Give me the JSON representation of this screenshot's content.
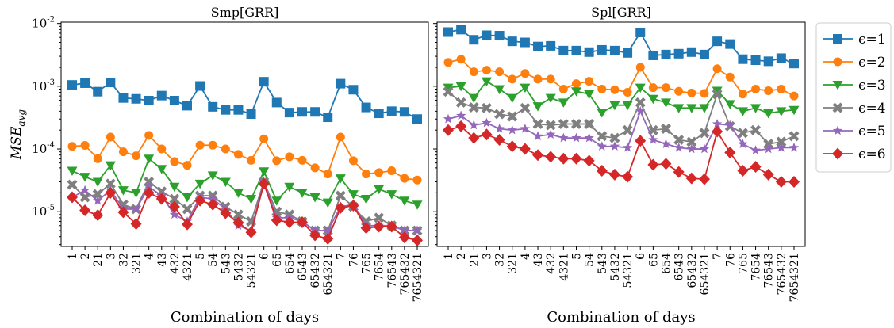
{
  "chart_data": [
    {
      "type": "line",
      "title": "Smp[GRR]",
      "xlabel": "Combination of days",
      "ylabel": "MSE",
      "ylabel_sub": "avg",
      "yscale": "log",
      "ylim": [
        2.8e-06,
        0.0105
      ],
      "yticks": [
        {
          "value": 1e-05,
          "base": "10",
          "exp": "-5"
        },
        {
          "value": 0.0001,
          "base": "10",
          "exp": "-4"
        },
        {
          "value": 0.001,
          "base": "10",
          "exp": "-3"
        },
        {
          "value": 0.01,
          "base": "10",
          "exp": "-2"
        }
      ],
      "categories": [
        "1",
        "2",
        "21",
        "3",
        "32",
        "321",
        "4",
        "43",
        "432",
        "4321",
        "5",
        "54",
        "543",
        "5432",
        "54321",
        "6",
        "65",
        "654",
        "6543",
        "65432",
        "654321",
        "7",
        "76",
        "765",
        "7654",
        "76543",
        "765432",
        "7654321"
      ],
      "series": [
        {
          "name": "ϵ=1",
          "values": [
            0.00105,
            0.00112,
            0.00082,
            0.00115,
            0.00065,
            0.00063,
            0.00059,
            0.00071,
            0.00059,
            0.00049,
            0.00101,
            0.00047,
            0.00042,
            0.00042,
            0.00036,
            0.00118,
            0.00055,
            0.00038,
            0.00039,
            0.00039,
            0.00032,
            0.0011,
            0.00088,
            0.00046,
            0.00037,
            0.0004,
            0.00039,
            0.0003
          ]
        },
        {
          "name": "ϵ=2",
          "values": [
            0.00011,
            0.000114,
            7e-05,
            0.000155,
            9e-05,
            7.8e-05,
            0.000165,
            0.0001,
            6.3e-05,
            5.5e-05,
            0.000115,
            0.000115,
            0.0001,
            8.2e-05,
            6.6e-05,
            0.000145,
            6.5e-05,
            7.5e-05,
            6.6e-05,
            5e-05,
            4e-05,
            0.000155,
            6.5e-05,
            4e-05,
            4.2e-05,
            4.5e-05,
            3.4e-05,
            3.2e-05
          ]
        },
        {
          "name": "ϵ=3",
          "values": [
            4.5e-05,
            3.6e-05,
            3e-05,
            5.5e-05,
            2.2e-05,
            2e-05,
            7e-05,
            4.8e-05,
            2.5e-05,
            1.7e-05,
            2.8e-05,
            3.8e-05,
            3e-05,
            2e-05,
            1.6e-05,
            4.4e-05,
            1.5e-05,
            2.5e-05,
            2e-05,
            1.7e-05,
            1.4e-05,
            3.4e-05,
            1.9e-05,
            1.6e-05,
            2.3e-05,
            1.9e-05,
            1.5e-05,
            1.3e-05
          ]
        },
        {
          "name": "ϵ=4",
          "values": [
            2.7e-05,
            1.7e-05,
            1.9e-05,
            2.8e-05,
            1.3e-05,
            1.1e-05,
            3e-05,
            2.1e-05,
            1.6e-05,
            1.1e-05,
            1.8e-05,
            1.8e-05,
            1.2e-05,
            9e-06,
            7e-06,
            3e-05,
            1e-05,
            9e-06,
            7e-06,
            5e-06,
            5e-06,
            1.8e-05,
            1.2e-05,
            7e-06,
            8e-06,
            6e-06,
            5e-06,
            5e-06
          ]
        },
        {
          "name": "ϵ=5",
          "values": [
            1.7e-05,
            2.2e-05,
            1.5e-05,
            2.2e-05,
            1.1e-05,
            1.1e-05,
            2.5e-05,
            1.8e-05,
            9e-06,
            7e-06,
            1.7e-05,
            1.6e-05,
            1.1e-05,
            6e-06,
            5e-06,
            3e-05,
            8e-06,
            8e-06,
            7e-06,
            5e-06,
            5e-06,
            1.2e-05,
            1.3e-05,
            6e-06,
            6e-06,
            6e-06,
            5e-06,
            5e-06
          ]
        },
        {
          "name": "ϵ=6",
          "values": [
            1.7e-05,
            1.05e-05,
            8.8e-06,
            2e-05,
            9.8e-06,
            6.4e-06,
            2e-05,
            1.6e-05,
            1.2e-05,
            6.3e-06,
            1.5e-05,
            1.3e-05,
            9.5e-06,
            6.7e-06,
            4.7e-06,
            2.8e-05,
            7.3e-06,
            6.8e-06,
            6.8e-06,
            4.2e-06,
            3.7e-06,
            1.15e-05,
            1.25e-05,
            5.5e-06,
            5.8e-06,
            5.8e-06,
            3.9e-06,
            3.5e-06
          ]
        }
      ]
    },
    {
      "type": "line",
      "title": "Spl[GRR]",
      "xlabel": "Combination of days",
      "yscale": "log",
      "ylim": [
        2.8e-06,
        0.0105
      ],
      "categories": [
        "1",
        "2",
        "21",
        "3",
        "32",
        "321",
        "4",
        "43",
        "432",
        "4321",
        "5",
        "54",
        "543",
        "5432",
        "54321",
        "6",
        "65",
        "654",
        "6543",
        "65432",
        "654321",
        "7",
        "76",
        "765",
        "7654",
        "76543",
        "765432",
        "7654321"
      ],
      "series": [
        {
          "name": "ϵ=1",
          "values": [
            0.0073,
            0.008,
            0.0055,
            0.0065,
            0.0064,
            0.0052,
            0.005,
            0.0043,
            0.0044,
            0.0037,
            0.0037,
            0.0035,
            0.0038,
            0.0037,
            0.0034,
            0.0072,
            0.0031,
            0.0032,
            0.0033,
            0.0035,
            0.0032,
            0.0052,
            0.0047,
            0.0027,
            0.0026,
            0.0025,
            0.0028,
            0.0023
          ]
        },
        {
          "name": "ϵ=2",
          "values": [
            0.0024,
            0.0027,
            0.0017,
            0.0018,
            0.0017,
            0.0013,
            0.0016,
            0.0013,
            0.0013,
            0.0009,
            0.0011,
            0.0012,
            0.0009,
            0.00088,
            0.0008,
            0.002,
            0.00095,
            0.00095,
            0.00083,
            0.00078,
            0.00077,
            0.0019,
            0.0014,
            0.00075,
            0.0009,
            0.00085,
            0.0009,
            0.0007
          ]
        },
        {
          "name": "ϵ=3",
          "values": [
            0.00095,
            0.001,
            0.00065,
            0.0012,
            0.0009,
            0.00065,
            0.00095,
            0.00048,
            0.00065,
            0.00055,
            0.00083,
            0.00075,
            0.00038,
            0.0005,
            0.0005,
            0.00095,
            0.00063,
            0.00055,
            0.00045,
            0.00045,
            0.00045,
            0.00085,
            0.00052,
            0.0004,
            0.00045,
            0.00037,
            0.0004,
            0.00042
          ]
        },
        {
          "name": "ϵ=4",
          "values": [
            0.00082,
            0.00055,
            0.00046,
            0.00045,
            0.00036,
            0.00033,
            0.00045,
            0.00025,
            0.00024,
            0.00025,
            0.00025,
            0.00025,
            0.00016,
            0.00015,
            0.0002,
            0.00055,
            0.0002,
            0.00021,
            0.00014,
            0.00013,
            0.00018,
            0.00075,
            0.00023,
            0.00018,
            0.0002,
            0.00012,
            0.00013,
            0.00016
          ]
        },
        {
          "name": "ϵ=5",
          "values": [
            0.0003,
            0.00034,
            0.00024,
            0.00026,
            0.00021,
            0.0002,
            0.00021,
            0.00016,
            0.00017,
            0.00015,
            0.00015,
            0.00015,
            0.00011,
            0.00011,
            0.000105,
            0.0004,
            0.00014,
            0.00012,
            0.000105,
            0.0001,
            0.0001,
            0.00025,
            0.00024,
            0.00012,
            9.5e-05,
            0.0001,
            0.000105,
            0.000105
          ]
        },
        {
          "name": "ϵ=6",
          "values": [
            0.0002,
            0.00023,
            0.00015,
            0.00017,
            0.00014,
            0.00011,
            0.0001,
            8e-05,
            7.5e-05,
            7e-05,
            7e-05,
            6.5e-05,
            4.5e-05,
            3.9e-05,
            3.6e-05,
            0.000135,
            5.6e-05,
            5.8e-05,
            4.3e-05,
            3.4e-05,
            3.3e-05,
            0.00019,
            8.8e-05,
            4.5e-05,
            5.2e-05,
            3.9e-05,
            3e-05,
            3e-05
          ]
        }
      ]
    }
  ],
  "colors": [
    "#1f77b4",
    "#ff7f0e",
    "#2ca02c",
    "#7f7f7f",
    "#9467bd",
    "#d62728"
  ],
  "markers": [
    "square",
    "circle",
    "triangle-down",
    "x-filled",
    "star",
    "diamond"
  ],
  "legend": {
    "placement": "right",
    "entries": [
      "ϵ=1",
      "ϵ=2",
      "ϵ=3",
      "ϵ=4",
      "ϵ=5",
      "ϵ=6"
    ]
  }
}
